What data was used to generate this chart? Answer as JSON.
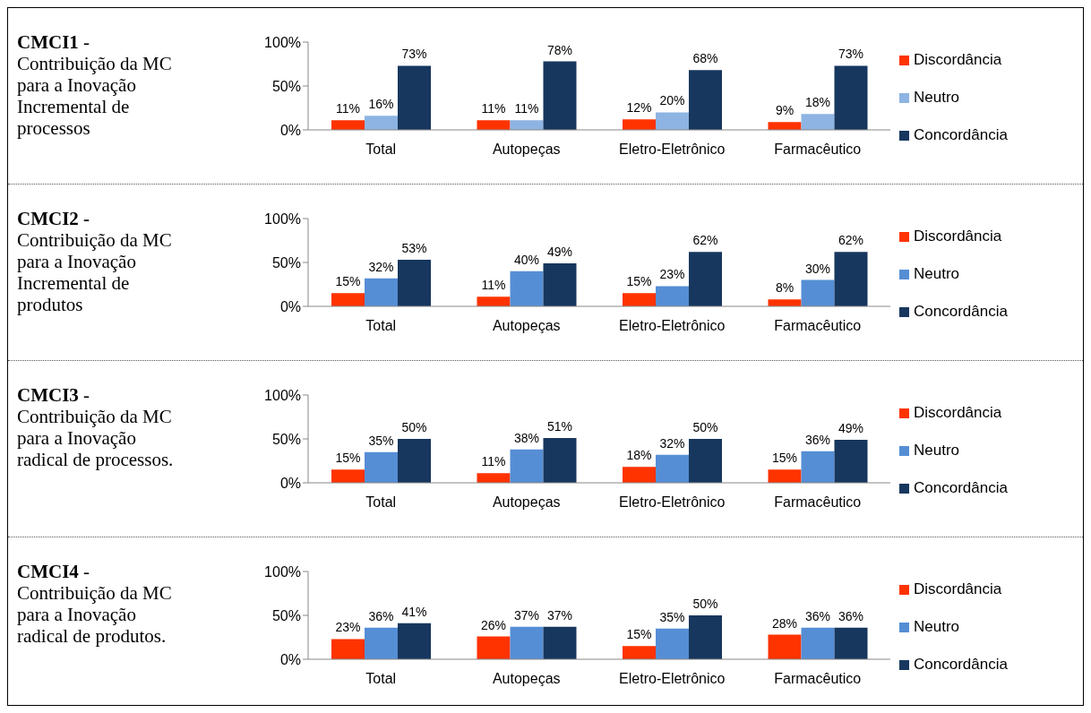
{
  "chart_data": [
    {
      "type": "bar",
      "annotations": [
        "CMCI1",
        "- Contribuição da MC para a Inovação Incremental de processos"
      ],
      "categories": [
        "Total",
        "Autopeças",
        "Eletro-Eletrônico",
        "Farmacêutico"
      ],
      "ylim": [
        0,
        100
      ],
      "yticks": [
        {
          "value": 0,
          "label": "0%"
        },
        {
          "value": 50,
          "label": "50%"
        },
        {
          "value": 100,
          "label": "100%"
        }
      ],
      "legend": "right",
      "series": [
        {
          "name": "Discordância",
          "color": "#ff3300",
          "values": [
            11,
            11,
            12,
            9
          ],
          "value_labels": [
            "11%",
            "11%",
            "12%",
            "9%"
          ]
        },
        {
          "name": "Neutro",
          "color": "#8db4e2",
          "values": [
            16,
            11,
            20,
            18
          ],
          "value_labels": [
            "16%",
            "11%",
            "20%",
            "18%"
          ]
        },
        {
          "name": "Concordância",
          "color": "#17375e",
          "values": [
            73,
            78,
            68,
            73
          ],
          "value_labels": [
            "73%",
            "78%",
            "68%",
            "73%"
          ]
        }
      ]
    },
    {
      "type": "bar",
      "annotations": [
        "CMCI2 -",
        "Contribuição da MC para a Inovação Incremental de produtos"
      ],
      "categories": [
        "Total",
        "Autopeças",
        "Eletro-Eletrônico",
        "Farmacêutico"
      ],
      "ylim": [
        0,
        100
      ],
      "yticks": [
        {
          "value": 0,
          "label": "0%"
        },
        {
          "value": 50,
          "label": "50%"
        },
        {
          "value": 100,
          "label": "100%"
        }
      ],
      "legend": "right",
      "series": [
        {
          "name": "Discordância",
          "color": "#ff3300",
          "values": [
            15,
            11,
            15,
            8
          ],
          "value_labels": [
            "15%",
            "11%",
            "15%",
            "8%"
          ]
        },
        {
          "name": "Neutro",
          "color": "#558ed5",
          "values": [
            32,
            40,
            23,
            30
          ],
          "value_labels": [
            "32%",
            "40%",
            "23%",
            "30%"
          ]
        },
        {
          "name": "Concordância",
          "color": "#17375e",
          "values": [
            53,
            49,
            62,
            62
          ],
          "value_labels": [
            "53%",
            "49%",
            "62%",
            "62%"
          ]
        }
      ]
    },
    {
      "type": "bar",
      "annotations": [
        "CMCI3",
        "- Contribuição da MC para a Inovação radical de processos."
      ],
      "categories": [
        "Total",
        "Autopeças",
        "Eletro-Eletrônico",
        "Farmacêutico"
      ],
      "ylim": [
        0,
        100
      ],
      "yticks": [
        {
          "value": 0,
          "label": "0%"
        },
        {
          "value": 50,
          "label": "50%"
        },
        {
          "value": 100,
          "label": "100%"
        }
      ],
      "legend": "right",
      "series": [
        {
          "name": "Discordância",
          "color": "#ff3300",
          "values": [
            15,
            11,
            18,
            15
          ],
          "value_labels": [
            "15%",
            "11%",
            "18%",
            "15%"
          ]
        },
        {
          "name": "Neutro",
          "color": "#558ed5",
          "values": [
            35,
            38,
            32,
            36
          ],
          "value_labels": [
            "35%",
            "38%",
            "32%",
            "36%"
          ]
        },
        {
          "name": "Concordância",
          "color": "#17375e",
          "values": [
            50,
            51,
            50,
            49
          ],
          "value_labels": [
            "50%",
            "51%",
            "50%",
            "49%"
          ]
        }
      ]
    },
    {
      "type": "bar",
      "annotations": [
        "CMCI4",
        "- Contribuição da MC para a Inovação radical de produtos."
      ],
      "categories": [
        "Total",
        "Autopeças",
        "Eletro-Eletrônico",
        "Farmacêutico"
      ],
      "ylim": [
        0,
        100
      ],
      "yticks": [
        {
          "value": 0,
          "label": "0%"
        },
        {
          "value": 50,
          "label": "50%"
        },
        {
          "value": 100,
          "label": "100%"
        }
      ],
      "legend": "right",
      "series": [
        {
          "name": "Discordância",
          "color": "#ff3300",
          "values": [
            23,
            26,
            15,
            28
          ],
          "value_labels": [
            "23%",
            "26%",
            "15%",
            "28%"
          ]
        },
        {
          "name": "Neutro",
          "color": "#558ed5",
          "values": [
            36,
            37,
            35,
            36
          ],
          "value_labels": [
            "36%",
            "37%",
            "35%",
            "36%"
          ]
        },
        {
          "name": "Concordância",
          "color": "#17375e",
          "values": [
            41,
            37,
            50,
            36
          ],
          "value_labels": [
            "41%",
            "37%",
            "50%",
            "36%"
          ]
        }
      ]
    }
  ]
}
